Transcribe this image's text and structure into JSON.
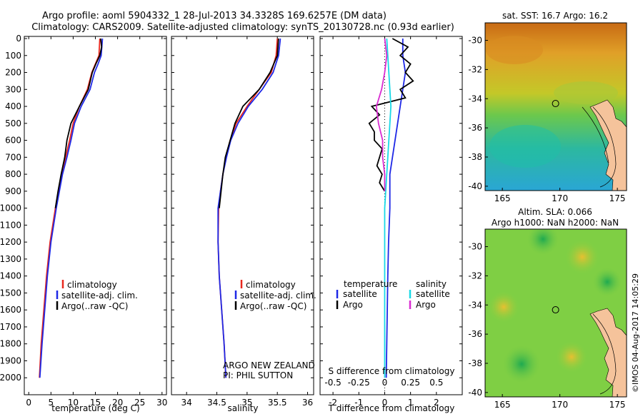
{
  "header": {
    "line1": "Argo profile: aoml 5904332_1 28-Jul-2013 34.3328S 169.6257E (DM data)",
    "line2": "Climatology: CARS2009. Satellite-adjusted climatology: synTS_20130728.nc (0.93d earlier)"
  },
  "colors": {
    "climatology": "#e8281e",
    "satellite": "#1e28e6",
    "argo": "#000000",
    "cyan": "#19d9e6",
    "magenta": "#d92bd1",
    "land": "#f5c39b"
  },
  "chart_data": [
    {
      "type": "line",
      "panel": "temperature",
      "xlabel": "temperature (deg C)",
      "ylabel": "",
      "xlim": [
        -1,
        31
      ],
      "ylim": [
        2100,
        0
      ],
      "xticks": [
        0,
        5,
        10,
        15,
        20,
        25,
        30
      ],
      "yticks": [
        0,
        100,
        200,
        300,
        400,
        500,
        600,
        700,
        800,
        900,
        1000,
        1100,
        1200,
        1300,
        1400,
        1500,
        1600,
        1700,
        1800,
        1900,
        2000
      ],
      "legend": [
        "climatology",
        "satellite-adj. clim.",
        "Argo(..raw -QC)"
      ],
      "series": [
        {
          "name": "climatology",
          "color": "climatology",
          "depth": [
            0,
            100,
            150,
            200,
            250,
            300,
            400,
            500,
            600,
            700,
            800,
            900,
            1000,
            1200,
            1400,
            1600,
            1800,
            2000
          ],
          "values": [
            16.0,
            15.8,
            15.0,
            14.2,
            13.7,
            13.2,
            11.4,
            10.0,
            9.2,
            8.3,
            7.4,
            6.7,
            6.0,
            4.8,
            4.0,
            3.4,
            2.8,
            2.4
          ]
        },
        {
          "name": "satellite-adj. clim.",
          "color": "satellite",
          "depth": [
            0,
            100,
            150,
            200,
            250,
            300,
            400,
            500,
            600,
            700,
            800,
            900,
            1000,
            1200,
            1400,
            1600,
            1800,
            2000
          ],
          "values": [
            16.6,
            16.3,
            15.6,
            14.8,
            14.3,
            13.8,
            11.8,
            10.3,
            9.5,
            8.6,
            7.6,
            6.9,
            6.2,
            5.0,
            4.2,
            3.6,
            3.0,
            2.5
          ]
        },
        {
          "name": "Argo(..raw -QC)",
          "color": "argo",
          "depth": [
            0,
            50,
            100,
            150,
            200,
            300,
            400,
            500,
            600,
            700,
            800,
            900,
            1000
          ],
          "values": [
            16.2,
            16.4,
            16.0,
            15.1,
            14.3,
            13.4,
            11.4,
            9.5,
            8.6,
            8.1,
            7.3,
            6.6,
            6.0
          ]
        }
      ]
    },
    {
      "type": "line",
      "panel": "salinity",
      "xlabel": "salinity",
      "ylabel": "",
      "xlim": [
        33.75,
        36.1
      ],
      "ylim": [
        2100,
        0
      ],
      "xticks": [
        34,
        34.5,
        35,
        35.5,
        36
      ],
      "legend": [
        "climatology",
        "satellite-adj. clim.",
        "Argo(..raw -QC)"
      ],
      "annotations": [
        "ARGO NEW ZEALAND",
        "PI: PHIL SUTTON"
      ],
      "series": [
        {
          "name": "climatology",
          "color": "climatology",
          "depth": [
            0,
            100,
            200,
            300,
            400,
            500,
            600,
            700,
            800,
            900,
            1000,
            1200,
            1400,
            1600,
            1800,
            2000
          ],
          "values": [
            35.5,
            35.48,
            35.4,
            35.2,
            35.0,
            34.82,
            34.72,
            34.65,
            34.6,
            34.56,
            34.53,
            34.52,
            34.54,
            34.58,
            34.62,
            34.65
          ]
        },
        {
          "name": "satellite-adj. clim.",
          "color": "satellite",
          "depth": [
            0,
            100,
            200,
            300,
            400,
            500,
            600,
            700,
            800,
            900,
            1000,
            1200,
            1400,
            1600,
            1800,
            2000
          ],
          "values": [
            35.55,
            35.52,
            35.43,
            35.25,
            35.02,
            34.85,
            34.73,
            34.66,
            34.6,
            34.56,
            34.52,
            34.52,
            34.54,
            34.58,
            34.62,
            34.65
          ]
        },
        {
          "name": "Argo(..raw -QC)",
          "color": "argo",
          "depth": [
            0,
            100,
            200,
            300,
            400,
            500,
            600,
            700,
            800,
            900,
            1000
          ],
          "values": [
            35.52,
            35.5,
            35.38,
            35.2,
            34.93,
            34.8,
            34.72,
            34.64,
            34.6,
            34.57,
            34.54
          ]
        }
      ]
    },
    {
      "type": "line",
      "panel": "difference",
      "xlabel": "T difference from climatology",
      "xlabel_top": "S difference from climatology",
      "xlim": [
        -2.5,
        3
      ],
      "ylim": [
        2100,
        0
      ],
      "xticks": [
        -2,
        -1,
        0,
        1,
        2
      ],
      "xticks_top": [
        -0.5,
        -0.25,
        0,
        0.25,
        0.5
      ],
      "legend_left_title": "temperature",
      "legend_right_title": "salinity",
      "legend_left": [
        "satellite",
        "Argo"
      ],
      "legend_right": [
        "satellite",
        "Argo"
      ],
      "series": [
        {
          "name": "T satellite",
          "color": "satellite",
          "depth": [
            0,
            100,
            200,
            300,
            400,
            500,
            600,
            700,
            800,
            900,
            1000,
            1200,
            1400,
            1600,
            1800,
            2000
          ],
          "values": [
            0.7,
            0.7,
            0.8,
            0.7,
            0.6,
            0.5,
            0.4,
            0.3,
            0.2,
            0.2,
            0.2,
            0.15,
            0.12,
            0.1,
            0.08,
            0.06
          ]
        },
        {
          "name": "T Argo",
          "color": "argo",
          "depth": [
            0,
            50,
            100,
            150,
            200,
            250,
            300,
            350,
            400,
            450,
            500,
            550,
            600,
            650,
            700,
            750,
            800,
            850,
            900
          ],
          "values": [
            0.3,
            0.9,
            0.6,
            1.0,
            0.8,
            1.1,
            0.6,
            0.8,
            -0.5,
            -0.2,
            -0.6,
            -0.4,
            -0.4,
            -0.1,
            -0.2,
            -0.3,
            -0.1,
            -0.2,
            0.0
          ]
        },
        {
          "name": "S satellite",
          "color": "cyan",
          "depth": [
            0,
            100,
            200,
            300,
            400,
            500,
            600,
            700,
            800,
            900,
            1000,
            1200,
            1400,
            1600,
            1800,
            2000
          ],
          "values": [
            0.02,
            0.03,
            0.04,
            0.05,
            0.06,
            0.05,
            0.04,
            0.03,
            0.02,
            0.01,
            0.0,
            0.0,
            0.0,
            0.0,
            0.0,
            0.0
          ]
        },
        {
          "name": "S Argo",
          "color": "magenta",
          "depth": [
            0,
            100,
            200,
            300,
            400,
            500,
            600,
            700,
            800,
            900
          ],
          "values": [
            0.0,
            0.02,
            0.0,
            -0.03,
            -0.08,
            -0.06,
            -0.02,
            -0.02,
            0.0,
            0.0
          ]
        }
      ]
    },
    {
      "type": "heatmap",
      "panel": "sst-map",
      "title": "sat. SST: 16.7 Argo: 16.2",
      "xticks": [
        165,
        170,
        175
      ],
      "yticks": [
        -30,
        -32,
        -34,
        -36,
        -38,
        -40
      ],
      "xlim": [
        163.5,
        175.8
      ],
      "ylim": [
        -40.3,
        -28.8
      ],
      "argo_position": [
        169.6257,
        -34.3328
      ]
    },
    {
      "type": "heatmap",
      "panel": "sla-map",
      "title": "Altim. SLA: 0.066",
      "subtitle": "Argo h1000: NaN h2000: NaN",
      "xticks": [
        165,
        170,
        175
      ],
      "yticks": [
        -30,
        -32,
        -34,
        -36,
        -38,
        -40
      ],
      "xlim": [
        163.5,
        175.8
      ],
      "ylim": [
        -40.3,
        -28.8
      ],
      "argo_position": [
        169.6257,
        -34.3328
      ]
    }
  ],
  "credit": "©IMOS 04-Aug-2017 14:05:29"
}
